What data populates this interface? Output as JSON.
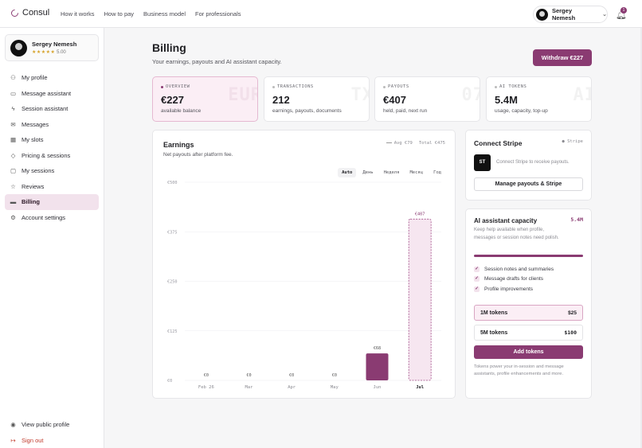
{
  "app": {
    "name": "Consul"
  },
  "topnav": [
    "How it works",
    "How to pay",
    "Business model",
    "For professionals"
  ],
  "user": {
    "name": "Sergey Nemesh",
    "stars": "★★★★★",
    "rating": "5.00",
    "notifications": "1"
  },
  "sidebar": {
    "items": [
      {
        "label": "My profile",
        "icon": "person-icon"
      },
      {
        "label": "Message assistant",
        "icon": "chat-icon"
      },
      {
        "label": "Session assistant",
        "icon": "bolt-icon"
      },
      {
        "label": "Messages",
        "icon": "mail-icon"
      },
      {
        "label": "My slots",
        "icon": "calendar-icon"
      },
      {
        "label": "Pricing & sessions",
        "icon": "tag-icon"
      },
      {
        "label": "My sessions",
        "icon": "video-icon"
      },
      {
        "label": "Reviews",
        "icon": "star-icon"
      },
      {
        "label": "Billing",
        "icon": "card-icon",
        "active": true
      },
      {
        "label": "Account settings",
        "icon": "gear-icon"
      }
    ],
    "bottom": {
      "view_profile": "View public profile",
      "sign_out": "Sign out"
    }
  },
  "page": {
    "title": "Billing",
    "subtitle": "Your earnings, payouts and AI assistant capacity.",
    "withdraw": "Withdraw €227"
  },
  "stats": [
    {
      "label": "OVERVIEW",
      "value": "€227",
      "caption": "available balance",
      "ghost": "EUR",
      "active": true
    },
    {
      "label": "TRANSACTIONS",
      "value": "212",
      "caption": "earnings, payouts, documents",
      "ghost": "TX"
    },
    {
      "label": "PAYOUTS",
      "value": "€407",
      "caption": "held, paid, next run",
      "ghost": "07"
    },
    {
      "label": "AI TOKENS",
      "value": "5.4M",
      "caption": "usage, capacity, top-up",
      "ghost": "AI"
    }
  ],
  "earnings": {
    "title": "Earnings",
    "subtitle": "Net payouts after platform fee.",
    "legend_avg": "Avg €79",
    "legend_total": "Total €475",
    "tabs": [
      "Auto",
      "День",
      "Неделя",
      "Месяц",
      "Год"
    ],
    "active_tab": "Auto"
  },
  "chart_data": {
    "type": "bar",
    "categories": [
      "Feb 26",
      "Mar",
      "Apr",
      "May",
      "Jun",
      "Jul"
    ],
    "values": [
      0,
      0,
      0,
      0,
      68,
      407
    ],
    "data_labels": [
      "€0",
      "€0",
      "€0",
      "€0",
      "€68",
      "€407"
    ],
    "y_ticks": [
      "€0",
      "€125",
      "€250",
      "€375",
      "€500"
    ],
    "ylim": [
      0,
      500
    ],
    "highlight_category": "Jul",
    "colors": {
      "bar": "#8a3b72",
      "highlight_fill": "#f6e6f0",
      "highlight_stroke": "#a04a86"
    }
  },
  "stripe": {
    "title": "Connect Stripe",
    "tag": "Stripe",
    "logo": "ST",
    "text": "Connect Stripe to receive payouts.",
    "button": "Manage payouts & Stripe"
  },
  "ai": {
    "title": "AI assistant capacity",
    "amount": "5.4M",
    "description": "Keep help available when profile, messages or session notes need polish.",
    "capacity_fraction": 1.0,
    "features": [
      "Session notes and summaries",
      "Message drafts for clients",
      "Profile improvements"
    ],
    "plans": [
      {
        "name": "1M tokens",
        "price": "$25",
        "selected": true
      },
      {
        "name": "5M tokens",
        "price": "$100"
      }
    ],
    "add_button": "Add tokens",
    "footnote": "Tokens power your in-session and message assistants, profile enhancements and more."
  },
  "colors": {
    "accent": "#8a3b72",
    "accent_light": "#f2e2ec",
    "danger": "#c0392b"
  }
}
